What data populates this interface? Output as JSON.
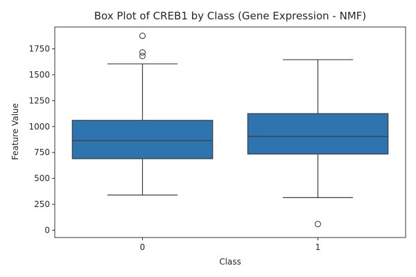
{
  "chart_data": {
    "type": "box",
    "title": "Box Plot of CREB1 by Class (Gene Expression - NMF)",
    "xlabel": "Class",
    "ylabel": "Feature Value",
    "categories": [
      "0",
      "1"
    ],
    "ylim": [
      -70,
      1960
    ],
    "yticks": [
      0,
      250,
      500,
      750,
      1000,
      1250,
      1500,
      1750
    ],
    "ytick_labels": [
      "0",
      "250",
      "500",
      "750",
      "1000",
      "1250",
      "1500",
      "1750"
    ],
    "grid": false,
    "box_color": "#2e75b0",
    "line_color": "#3d3d3d",
    "boxes": [
      {
        "category": "0",
        "q1": 690,
        "median": 865,
        "q3": 1060,
        "whisker_low": 340,
        "whisker_high": 1605,
        "outliers": [
          1680,
          1715,
          1875
        ]
      },
      {
        "category": "1",
        "q1": 735,
        "median": 905,
        "q3": 1125,
        "whisker_low": 315,
        "whisker_high": 1645,
        "outliers": [
          60
        ]
      }
    ]
  }
}
